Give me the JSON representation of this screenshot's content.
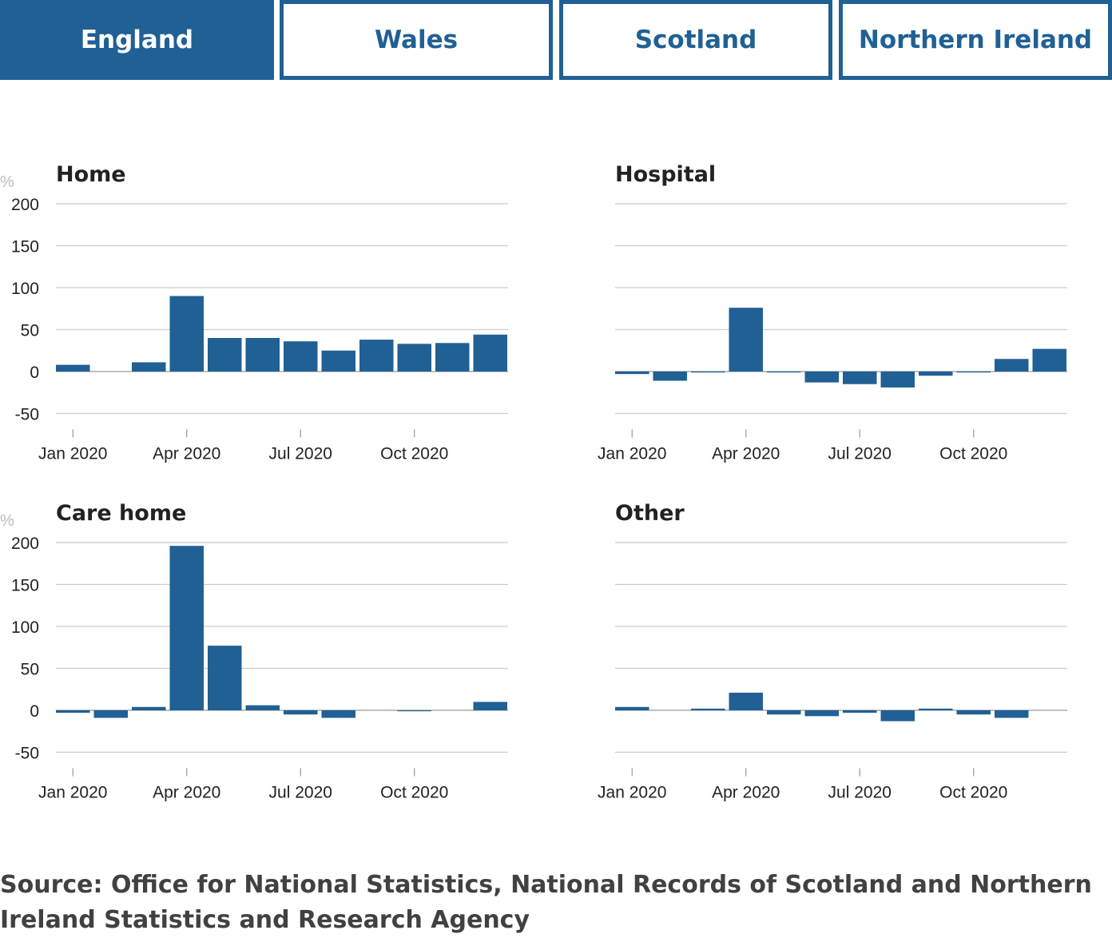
{
  "tabs": [
    {
      "label": "England",
      "active": true
    },
    {
      "label": "Wales",
      "active": false
    },
    {
      "label": "Scotland",
      "active": false
    },
    {
      "label": "Northern Ireland",
      "active": false
    }
  ],
  "colors": {
    "bar": "#206095",
    "grid": "#cccccc",
    "accent": "#206095"
  },
  "chart_data": [
    {
      "type": "bar",
      "title": "Home",
      "ylabel": "%",
      "categories": [
        "Jan 2020",
        "Feb 2020",
        "Mar 2020",
        "Apr 2020",
        "May 2020",
        "Jun 2020",
        "Jul 2020",
        "Aug 2020",
        "Sep 2020",
        "Oct 2020",
        "Nov 2020",
        "Dec 2020"
      ],
      "values": [
        8,
        0,
        11,
        90,
        40,
        40,
        36,
        25,
        38,
        33,
        34,
        44
      ],
      "ylim": [
        -50,
        200
      ],
      "yticks": [
        "-50",
        "0",
        "50",
        "100",
        "150",
        "200"
      ],
      "xticks": [
        "Jan 2020",
        "Apr 2020",
        "Jul 2020",
        "Oct 2020"
      ],
      "grid": true
    },
    {
      "type": "bar",
      "title": "Hospital",
      "ylabel": "",
      "categories": [
        "Jan 2020",
        "Feb 2020",
        "Mar 2020",
        "Apr 2020",
        "May 2020",
        "Jun 2020",
        "Jul 2020",
        "Aug 2020",
        "Sep 2020",
        "Oct 2020",
        "Nov 2020",
        "Dec 2020"
      ],
      "values": [
        -3,
        -11,
        -1,
        76,
        -1,
        -13,
        -15,
        -19,
        -5,
        -1,
        15,
        27
      ],
      "ylim": [
        -50,
        200
      ],
      "yticks": [],
      "xticks": [
        "Jan 2020",
        "Apr 2020",
        "Jul 2020",
        "Oct 2020"
      ],
      "grid": true
    },
    {
      "type": "bar",
      "title": "Care home",
      "ylabel": "%",
      "categories": [
        "Jan 2020",
        "Feb 2020",
        "Mar 2020",
        "Apr 2020",
        "May 2020",
        "Jun 2020",
        "Jul 2020",
        "Aug 2020",
        "Sep 2020",
        "Oct 2020",
        "Nov 2020",
        "Dec 2020"
      ],
      "values": [
        -3,
        -9,
        4,
        196,
        77,
        6,
        -5,
        -9,
        0,
        -1,
        0,
        10
      ],
      "ylim": [
        -50,
        200
      ],
      "yticks": [
        "-50",
        "0",
        "50",
        "100",
        "150",
        "200"
      ],
      "xticks": [
        "Jan 2020",
        "Apr 2020",
        "Jul 2020",
        "Oct 2020"
      ],
      "grid": true
    },
    {
      "type": "bar",
      "title": "Other",
      "ylabel": "",
      "categories": [
        "Jan 2020",
        "Feb 2020",
        "Mar 2020",
        "Apr 2020",
        "May 2020",
        "Jun 2020",
        "Jul 2020",
        "Aug 2020",
        "Sep 2020",
        "Oct 2020",
        "Nov 2020",
        "Dec 2020"
      ],
      "values": [
        4,
        0,
        2,
        21,
        -5,
        -7,
        -3,
        -13,
        2,
        -5,
        -9,
        0
      ],
      "ylim": [
        -50,
        200
      ],
      "yticks": [],
      "xticks": [
        "Jan 2020",
        "Apr 2020",
        "Jul 2020",
        "Oct 2020"
      ],
      "grid": true
    }
  ],
  "source": "Source: Office for National Statistics, National Records of Scotland and Northern Ireland Statistics and Research Agency"
}
